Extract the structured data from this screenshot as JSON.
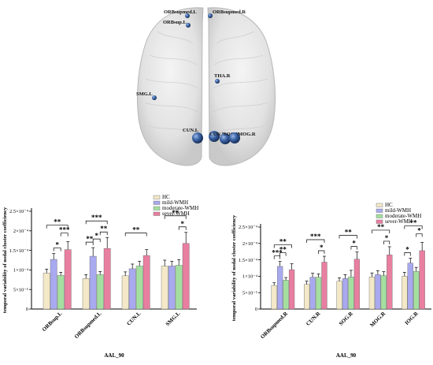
{
  "brain": {
    "nodes": [
      {
        "label": "ORBsupmed.L",
        "hemisphere": "left",
        "size": "small"
      },
      {
        "label": "ORBsup.L",
        "hemisphere": "left",
        "size": "small"
      },
      {
        "label": "ORBsupmed.R",
        "hemisphere": "right",
        "size": "small"
      },
      {
        "label": "THA.R",
        "hemisphere": "right",
        "size": "small"
      },
      {
        "label": "SMG.L",
        "hemisphere": "left",
        "size": "small"
      },
      {
        "label": "CUN.L",
        "hemisphere": "left",
        "size": "large"
      },
      {
        "label": "CUN.R",
        "hemisphere": "right",
        "size": "large"
      },
      {
        "label": "SOG.R",
        "hemisphere": "right",
        "size": "large"
      },
      {
        "label": "MOG.R",
        "hemisphere": "right",
        "size": "large"
      }
    ],
    "node_color": "#3b5f9a"
  },
  "chart_data": [
    {
      "type": "bar",
      "xlabel": "AAL_90",
      "ylabel": "temporal variability of nodal cluster coefficiency",
      "yticks": [
        "0",
        "5×10⁻⁵",
        "1×10⁻⁴",
        "1.5×10⁻⁴",
        "2×10⁻⁴",
        "2.5×10⁻⁴"
      ],
      "ylim": [
        0,
        2.5
      ],
      "legend_placement": "top-right",
      "categories": [
        "ORBsup.L",
        "ORBsupmed.L",
        "CUN.L",
        "SMG.L"
      ],
      "series": [
        {
          "name": "HC",
          "color": "#f3e8c8",
          "values": [
            0.92,
            0.78,
            0.85,
            1.1
          ],
          "errors": [
            0.1,
            0.1,
            0.1,
            0.15
          ]
        },
        {
          "name": "mild-WMH",
          "color": "#a9a9ef",
          "values": [
            1.27,
            1.35,
            1.03,
            1.1
          ],
          "errors": [
            0.15,
            0.22,
            0.12,
            0.12
          ]
        },
        {
          "name": "moderate-WMH",
          "color": "#a5dfa0",
          "values": [
            0.86,
            0.88,
            1.1,
            1.12
          ],
          "errors": [
            0.08,
            0.08,
            0.12,
            0.14
          ]
        },
        {
          "name": "sever-WMH",
          "color": "#e87ea0",
          "values": [
            1.52,
            1.55,
            1.37,
            1.68
          ],
          "errors": [
            0.2,
            0.28,
            0.15,
            0.28
          ]
        }
      ],
      "significance": [
        {
          "category": 0,
          "from": 0,
          "to": 3,
          "label": "**"
        },
        {
          "category": 0,
          "from": 1,
          "to": 2,
          "label": "*"
        },
        {
          "category": 0,
          "from": 2,
          "to": 3,
          "label": "***"
        },
        {
          "category": 1,
          "from": 0,
          "to": 3,
          "label": "***"
        },
        {
          "category": 1,
          "from": 0,
          "to": 1,
          "label": "**"
        },
        {
          "category": 1,
          "from": 1,
          "to": 2,
          "label": "*"
        },
        {
          "category": 1,
          "from": 2,
          "to": 3,
          "label": "**"
        },
        {
          "category": 2,
          "from": 0,
          "to": 3,
          "label": "**"
        },
        {
          "category": 3,
          "from": 0,
          "to": 3,
          "label": "**"
        },
        {
          "category": 3,
          "from": 2,
          "to": 3,
          "label": "*"
        }
      ]
    },
    {
      "type": "bar",
      "xlabel": "AAL_90",
      "ylabel": "temporal variability of nodal cluster coefficiency",
      "yticks": [
        "0",
        "5×10⁻⁵",
        "1×10⁻⁴",
        "1.5×10⁻⁴",
        "2×10⁻⁴",
        "2.5×10⁻⁴"
      ],
      "ylim": [
        0,
        2.5
      ],
      "legend_placement": "top-right",
      "categories": [
        "ORBsupmed.R",
        "CUN.R",
        "SOG.R",
        "MOG.R",
        "IOG.R"
      ],
      "series": [
        {
          "name": "HC",
          "color": "#f3e8c8",
          "values": [
            0.72,
            0.75,
            0.85,
            0.98,
            1.0
          ],
          "errors": [
            0.08,
            0.1,
            0.1,
            0.12,
            0.12
          ]
        },
        {
          "name": "mild-WMH",
          "color": "#a9a9ef",
          "values": [
            1.3,
            0.97,
            0.93,
            1.05,
            1.4
          ],
          "errors": [
            0.15,
            0.12,
            0.12,
            0.12,
            0.15
          ]
        },
        {
          "name": "moderate-WMH",
          "color": "#a5dfa0",
          "values": [
            0.88,
            0.97,
            0.98,
            1.02,
            1.15
          ],
          "errors": [
            0.08,
            0.1,
            0.2,
            0.12,
            0.12
          ]
        },
        {
          "name": "sever-WMH",
          "color": "#e87ea0",
          "values": [
            1.2,
            1.43,
            1.52,
            1.65,
            1.78
          ],
          "errors": [
            0.18,
            0.18,
            0.22,
            0.25,
            0.25
          ]
        }
      ],
      "significance": [
        {
          "category": 0,
          "from": 0,
          "to": 3,
          "label": "**"
        },
        {
          "category": 0,
          "from": 0,
          "to": 1,
          "label": "***"
        },
        {
          "category": 0,
          "from": 1,
          "to": 2,
          "label": "**"
        },
        {
          "category": 1,
          "from": 0,
          "to": 3,
          "label": "***"
        },
        {
          "category": 1,
          "from": 2,
          "to": 3,
          "label": "*"
        },
        {
          "category": 2,
          "from": 0,
          "to": 3,
          "label": "**"
        },
        {
          "category": 2,
          "from": 2,
          "to": 3,
          "label": "*"
        },
        {
          "category": 3,
          "from": 0,
          "to": 3,
          "label": "**"
        },
        {
          "category": 3,
          "from": 2,
          "to": 3,
          "label": "*"
        },
        {
          "category": 4,
          "from": 0,
          "to": 1,
          "label": "*"
        },
        {
          "category": 4,
          "from": 0,
          "to": 3,
          "label": "**"
        },
        {
          "category": 4,
          "from": 2,
          "to": 3,
          "label": "*"
        }
      ]
    }
  ]
}
